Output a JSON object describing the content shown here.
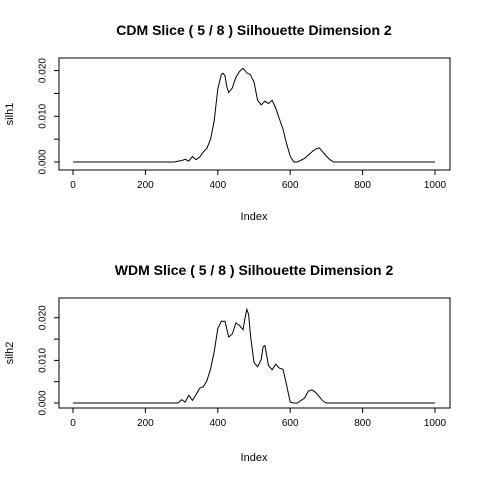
{
  "chart_data": [
    {
      "type": "line",
      "title": "CDM Slice ( 5 / 8 )  Silhouette Dimension 2",
      "xlabel": "Index",
      "ylabel": "silh1",
      "xlim": [
        0,
        1000
      ],
      "ylim": [
        0,
        0.021
      ],
      "xticks": [
        0,
        200,
        400,
        600,
        800,
        1000
      ],
      "xtick_labels": [
        "0",
        "200",
        "400",
        "600",
        "800",
        "1000"
      ],
      "yticks": [
        0,
        0.005,
        0.01,
        0.015,
        0.02
      ],
      "ytick_labels": [
        "0.000",
        "",
        "0.010",
        "",
        "0.020"
      ],
      "x": [
        0,
        280,
        290,
        300,
        310,
        320,
        330,
        340,
        350,
        360,
        370,
        380,
        390,
        400,
        410,
        415,
        420,
        425,
        430,
        440,
        450,
        460,
        470,
        480,
        490,
        500,
        510,
        520,
        530,
        540,
        550,
        560,
        570,
        580,
        590,
        600,
        610,
        620,
        640,
        650,
        660,
        670,
        680,
        690,
        700,
        710,
        720,
        1000
      ],
      "y": [
        0,
        0,
        0.0002,
        0.0003,
        0.0006,
        0.0002,
        0.0012,
        0.0005,
        0.0011,
        0.0022,
        0.003,
        0.005,
        0.009,
        0.016,
        0.0192,
        0.0194,
        0.0188,
        0.0165,
        0.0152,
        0.0162,
        0.0185,
        0.0198,
        0.0205,
        0.0195,
        0.0191,
        0.0175,
        0.0135,
        0.0125,
        0.0133,
        0.0128,
        0.0135,
        0.0118,
        0.0095,
        0.0072,
        0.004,
        0.0013,
        0,
        0,
        0.0008,
        0.0015,
        0.0022,
        0.0028,
        0.0031,
        0.0022,
        0.0013,
        0.0005,
        0,
        0
      ]
    },
    {
      "type": "line",
      "title": "WDM Slice ( 5 / 8 )  Silhouette Dimension 2",
      "xlabel": "Index",
      "ylabel": "silh2",
      "xlim": [
        0,
        1000
      ],
      "ylim": [
        0,
        0.023
      ],
      "xticks": [
        0,
        200,
        400,
        600,
        800,
        1000
      ],
      "xtick_labels": [
        "0",
        "200",
        "400",
        "600",
        "800",
        "1000"
      ],
      "yticks": [
        0,
        0.005,
        0.01,
        0.015,
        0.02
      ],
      "ytick_labels": [
        "0.000",
        "",
        "0.010",
        "",
        "0.020"
      ],
      "x": [
        0,
        290,
        300,
        310,
        320,
        330,
        340,
        350,
        360,
        370,
        380,
        390,
        400,
        410,
        420,
        430,
        440,
        450,
        460,
        470,
        475,
        480,
        485,
        490,
        500,
        510,
        520,
        525,
        530,
        540,
        550,
        560,
        570,
        580,
        590,
        600,
        610,
        620,
        640,
        650,
        660,
        670,
        680,
        690,
        700,
        1000
      ],
      "y": [
        0,
        0,
        0.0008,
        0.0002,
        0.0018,
        0.0006,
        0.002,
        0.0035,
        0.0038,
        0.0052,
        0.008,
        0.012,
        0.0175,
        0.0192,
        0.0192,
        0.0155,
        0.0162,
        0.0188,
        0.0182,
        0.0172,
        0.0198,
        0.022,
        0.0208,
        0.016,
        0.0095,
        0.0085,
        0.0102,
        0.0132,
        0.0135,
        0.0088,
        0.0078,
        0.0091,
        0.0082,
        0.0079,
        0.0042,
        0.0002,
        0,
        0,
        0.0012,
        0.0028,
        0.0031,
        0.0025,
        0.0015,
        0.0005,
        0,
        0
      ]
    }
  ]
}
